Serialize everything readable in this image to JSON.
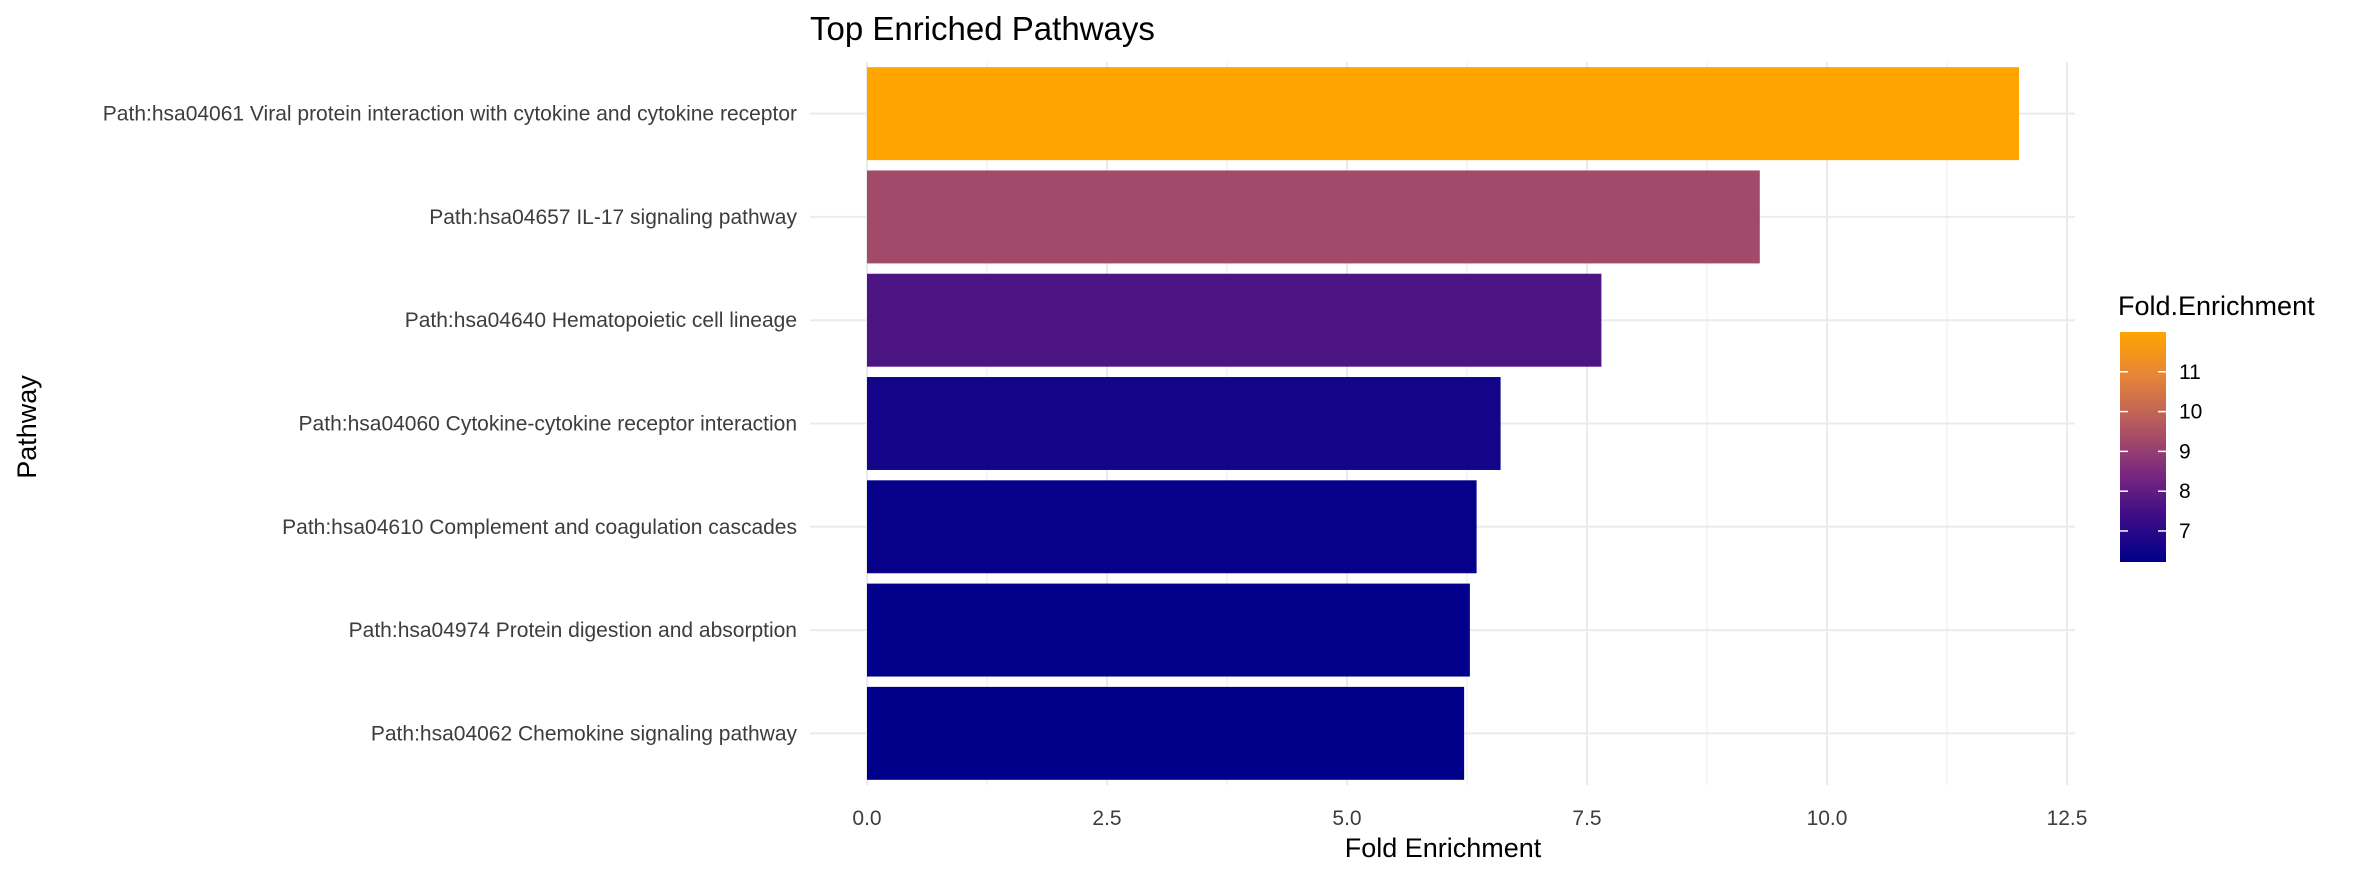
{
  "chart_data": {
    "type": "bar",
    "orientation": "horizontal",
    "title": "Top Enriched Pathways",
    "xlabel": "Fold Enrichment",
    "ylabel": "Pathway",
    "categories": [
      "Path:hsa04061 Viral protein interaction with cytokine and cytokine receptor",
      "Path:hsa04657 IL-17 signaling pathway",
      "Path:hsa04640 Hematopoietic cell lineage",
      "Path:hsa04060 Cytokine-cytokine receptor interaction",
      "Path:hsa04610 Complement and coagulation cascades",
      "Path:hsa04974 Protein digestion and absorption",
      "Path:hsa04062 Chemokine signaling pathway"
    ],
    "values": [
      12.0,
      9.3,
      7.65,
      6.6,
      6.35,
      6.28,
      6.22
    ],
    "xlim": [
      0,
      12.6
    ],
    "xticks": [
      "0.0",
      "2.5",
      "5.0",
      "7.5",
      "10.0",
      "12.5"
    ],
    "xtick_values": [
      0,
      2.5,
      5,
      7.5,
      10,
      12.5
    ],
    "grid": true,
    "legend": {
      "title": "Fold.Enrichment",
      "position": "right",
      "range": [
        6.22,
        12.0
      ],
      "ticks": [
        "7",
        "8",
        "9",
        "10",
        "11"
      ],
      "tick_values": [
        7,
        8,
        9,
        10,
        11
      ],
      "colors": [
        "#00008B",
        "#3D0D86",
        "#7F2A7E",
        "#B45A5E",
        "#E4833A",
        "#FFA500"
      ]
    }
  }
}
